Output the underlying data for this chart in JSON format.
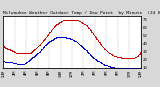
{
  "title": "Milwaukee Weather Outdoor Temp / Dew Point  by Minute  (24 Hours) (Alternate)",
  "title_fontsize": 3.2,
  "bg_color": "#d8d8d8",
  "plot_bg": "#ffffff",
  "temp_color": "#cc0000",
  "dew_color": "#0000cc",
  "ylim": [
    10,
    75
  ],
  "xlim": [
    0,
    1440
  ],
  "ytick_right": [
    10,
    20,
    30,
    40,
    50,
    60,
    70
  ],
  "ytick_right_labels": [
    "10",
    "20",
    "30",
    "40",
    "50",
    "60",
    "70"
  ],
  "marker_size": 0.5,
  "grid_color": "#999999",
  "n_xticks": 13,
  "xtick_labels": [
    "12AM",
    "2AM",
    "4AM",
    "6AM",
    "8AM",
    "10AM",
    "12PM",
    "2PM",
    "4PM",
    "6PM",
    "8PM",
    "10PM",
    "12AM"
  ],
  "xtick_fontsize": 2.2,
  "ytick_fontsize": 2.8,
  "temp_data": [
    38,
    37,
    37,
    36,
    36,
    35,
    35,
    35,
    34,
    34,
    34,
    33,
    33,
    33,
    33,
    33,
    32,
    32,
    32,
    31,
    31,
    31,
    31,
    30,
    30,
    30,
    30,
    29,
    29,
    29,
    29,
    29,
    29,
    29,
    29,
    29,
    28,
    28,
    28,
    28,
    28,
    28,
    28,
    28,
    28,
    28,
    28,
    28,
    28,
    28,
    28,
    28,
    28,
    28,
    28,
    28,
    28,
    28,
    29,
    29,
    29,
    30,
    30,
    31,
    31,
    32,
    32,
    33,
    33,
    34,
    34,
    35,
    35,
    36,
    36,
    37,
    37,
    38,
    38,
    39,
    39,
    40,
    41,
    41,
    42,
    43,
    43,
    44,
    45,
    45,
    46,
    47,
    48,
    49,
    49,
    50,
    51,
    52,
    52,
    53,
    54,
    55,
    55,
    56,
    57,
    58,
    58,
    59,
    60,
    60,
    61,
    62,
    62,
    63,
    63,
    64,
    64,
    65,
    65,
    65,
    66,
    66,
    67,
    67,
    67,
    68,
    68,
    68,
    68,
    69,
    69,
    69,
    69,
    69,
    69,
    69,
    69,
    70,
    70,
    70,
    70,
    70,
    70,
    70,
    70,
    70,
    70,
    70,
    70,
    70,
    70,
    70,
    70,
    70,
    70,
    70,
    70,
    70,
    70,
    69,
    69,
    69,
    69,
    69,
    69,
    68,
    68,
    68,
    68,
    67,
    67,
    67,
    66,
    66,
    66,
    65,
    65,
    65,
    64,
    64,
    63,
    63,
    62,
    62,
    61,
    60,
    60,
    59,
    58,
    58,
    57,
    56,
    55,
    55,
    54,
    53,
    52,
    51,
    50,
    49,
    49,
    48,
    47,
    46,
    46,
    45,
    44,
    43,
    42,
    42,
    41,
    40,
    39,
    39,
    38,
    37,
    36,
    36,
    35,
    34,
    34,
    33,
    33,
    32,
    32,
    31,
    31,
    30,
    30,
    29,
    29,
    29,
    28,
    28,
    27,
    27,
    27,
    26,
    26,
    26,
    25,
    25,
    25,
    25,
    25,
    25,
    24,
    24,
    24,
    24,
    24,
    23,
    23,
    23,
    23,
    23,
    23,
    22,
    22,
    22,
    22,
    22,
    22,
    22,
    22,
    22,
    22,
    22,
    22,
    22,
    22,
    22,
    22,
    22,
    22,
    22,
    22,
    22,
    22,
    22,
    22,
    22,
    22,
    22,
    22,
    23,
    23,
    23,
    24,
    24,
    25,
    25,
    25,
    26,
    27,
    27,
    27,
    28,
    29,
    30
  ],
  "dew_data": [
    18,
    18,
    18,
    18,
    17,
    17,
    17,
    17,
    17,
    17,
    17,
    17,
    17,
    17,
    17,
    17,
    17,
    17,
    17,
    17,
    17,
    16,
    16,
    16,
    16,
    16,
    16,
    16,
    16,
    15,
    15,
    15,
    15,
    15,
    15,
    15,
    15,
    15,
    15,
    15,
    15,
    15,
    15,
    15,
    15,
    15,
    15,
    16,
    16,
    16,
    17,
    17,
    17,
    18,
    18,
    19,
    19,
    20,
    20,
    21,
    21,
    22,
    22,
    23,
    23,
    24,
    24,
    24,
    25,
    25,
    26,
    26,
    27,
    27,
    28,
    28,
    29,
    29,
    30,
    30,
    31,
    32,
    32,
    33,
    34,
    34,
    35,
    36,
    36,
    37,
    38,
    38,
    39,
    39,
    40,
    40,
    41,
    41,
    42,
    42,
    43,
    43,
    44,
    44,
    44,
    45,
    45,
    45,
    46,
    46,
    46,
    47,
    47,
    47,
    47,
    48,
    48,
    48,
    48,
    48,
    48,
    48,
    48,
    48,
    48,
    48,
    48,
    48,
    48,
    48,
    48,
    48,
    48,
    48,
    48,
    48,
    48,
    47,
    47,
    47,
    47,
    47,
    47,
    47,
    47,
    47,
    46,
    46,
    46,
    46,
    46,
    45,
    45,
    45,
    44,
    44,
    44,
    43,
    43,
    43,
    42,
    42,
    41,
    41,
    40,
    40,
    39,
    39,
    38,
    38,
    37,
    37,
    36,
    36,
    35,
    35,
    34,
    34,
    33,
    33,
    32,
    32,
    31,
    30,
    30,
    29,
    28,
    28,
    27,
    27,
    26,
    25,
    25,
    24,
    24,
    23,
    22,
    22,
    22,
    21,
    21,
    21,
    20,
    20,
    19,
    19,
    19,
    18,
    18,
    18,
    17,
    17,
    17,
    16,
    16,
    16,
    15,
    15,
    15,
    14,
    14,
    14,
    14,
    13,
    13,
    13,
    13,
    12,
    12,
    12,
    12,
    12,
    12,
    11,
    11,
    11,
    11,
    11,
    11,
    11,
    11,
    11,
    10,
    10,
    10,
    10,
    10,
    10,
    10,
    10,
    10,
    10,
    10,
    10,
    10,
    10,
    10,
    10,
    10,
    10,
    10,
    10,
    10,
    10,
    10,
    10,
    10,
    10,
    10,
    10,
    10,
    10,
    10,
    10,
    10,
    10,
    10,
    10,
    10,
    10,
    10,
    10,
    10,
    10,
    10,
    10,
    10,
    10,
    10,
    10,
    10,
    10,
    10,
    10,
    10,
    10,
    10,
    10,
    10,
    10
  ]
}
